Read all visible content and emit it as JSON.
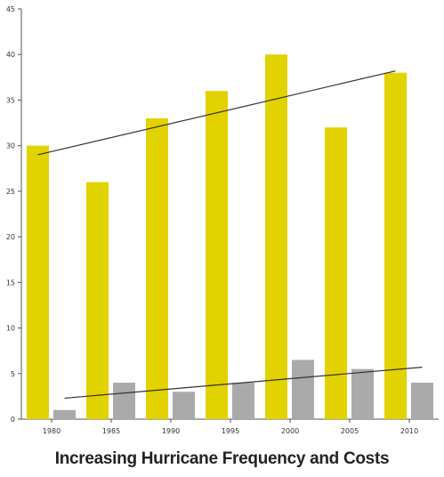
{
  "chart_data": {
    "type": "bar",
    "title": "Increasing Hurricane Frequency and Costs",
    "xlabel": "",
    "ylabel": "",
    "categories": [
      "1980",
      "1985",
      "1990",
      "1995",
      "2000",
      "2005",
      "2010"
    ],
    "ylim": [
      0,
      45
    ],
    "yticks": [
      0,
      5,
      10,
      15,
      20,
      25,
      30,
      35,
      40,
      45
    ],
    "grid": false,
    "series": [
      {
        "values": [
          30,
          26,
          33,
          36,
          40,
          32,
          38
        ],
        "color": "#e2d200"
      },
      {
        "values": [
          1,
          4,
          3,
          4,
          6.5,
          5.5,
          4
        ],
        "color": "#aaaaaa"
      }
    ],
    "trendlines": [
      {
        "start": 29,
        "end": 38.2,
        "color": "#333333"
      },
      {
        "start": 2.3,
        "end": 5.7,
        "color": "#333333"
      }
    ]
  }
}
